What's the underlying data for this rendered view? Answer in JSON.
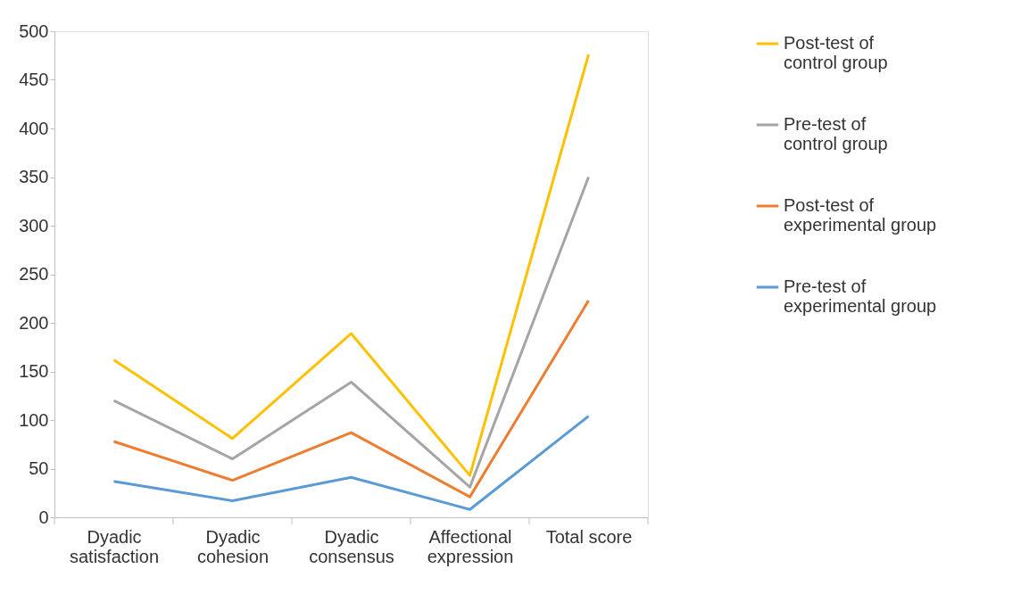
{
  "chart_data": {
    "type": "line",
    "categories": [
      "Dyadic satisfaction",
      "Dyadic cohesion",
      "Dyadic consensus",
      "Affectional expression",
      "Total score"
    ],
    "series": [
      {
        "name": "Post-test of control group",
        "color": "#ffc000",
        "values": [
          162,
          81,
          189,
          43,
          476
        ]
      },
      {
        "name": "Pre-test of control group",
        "color": "#a5a5a5",
        "values": [
          120,
          60,
          139,
          31,
          350
        ]
      },
      {
        "name": "Post-test of experimental group",
        "color": "#ed7d31",
        "values": [
          78,
          38,
          87,
          21,
          223
        ]
      },
      {
        "name": "Pre-test of experimental group",
        "color": "#5b9bd5",
        "values": [
          37,
          17,
          41,
          8,
          104
        ]
      }
    ],
    "ylim": [
      0,
      500
    ],
    "yticks": [
      0,
      50,
      100,
      150,
      200,
      250,
      300,
      350,
      400,
      450,
      500
    ],
    "grid": false,
    "legend": "right",
    "marker": "none",
    "line_style": "solid"
  }
}
